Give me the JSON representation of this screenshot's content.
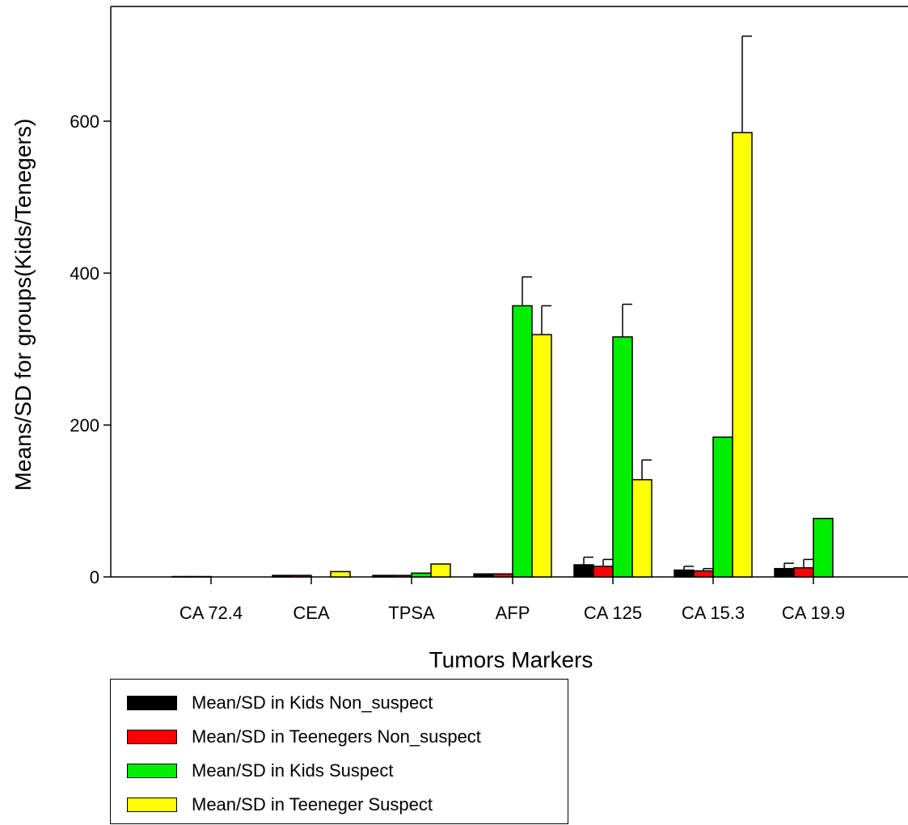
{
  "chart_data": {
    "type": "bar",
    "title": "",
    "xlabel": "Tumors Markers",
    "ylabel": "Means/SD for groups(Kids/Tenegers)",
    "ylim": [
      0,
      720
    ],
    "yticks": [
      0,
      200,
      400,
      600
    ],
    "grid": false,
    "legend_position": "bottom-left",
    "categories": [
      "CA 72.4",
      "CEA",
      "TPSA",
      "AFP",
      "CA 125",
      "CA 15.3",
      "CA 19.9"
    ],
    "series": [
      {
        "name": "Mean/SD in Kids Non_suspect",
        "color": "#000000",
        "values": [
          0.5,
          2,
          2,
          4,
          16,
          9,
          11
        ],
        "error": [
          0,
          0,
          0,
          0,
          10,
          5,
          7
        ]
      },
      {
        "name": "Mean/SD in Teenegers Non_suspect",
        "color": "#ff0000",
        "values": [
          0.5,
          2,
          2,
          4,
          14,
          8,
          12
        ],
        "error": [
          0,
          0,
          0,
          0,
          9,
          3,
          11
        ]
      },
      {
        "name": "Mean/SD in Kids Suspect",
        "color": "#00ee00",
        "values": [
          0,
          0,
          5,
          357,
          316,
          184,
          77
        ],
        "error": [
          0,
          0,
          0,
          38,
          43,
          0,
          0
        ]
      },
      {
        "name": "Mean/SD in Teeneger Suspect",
        "color": "#ffff00",
        "values": [
          0,
          7,
          17,
          319,
          128,
          585,
          0
        ],
        "error": [
          0,
          0,
          0,
          38,
          26,
          127,
          0
        ]
      }
    ]
  }
}
